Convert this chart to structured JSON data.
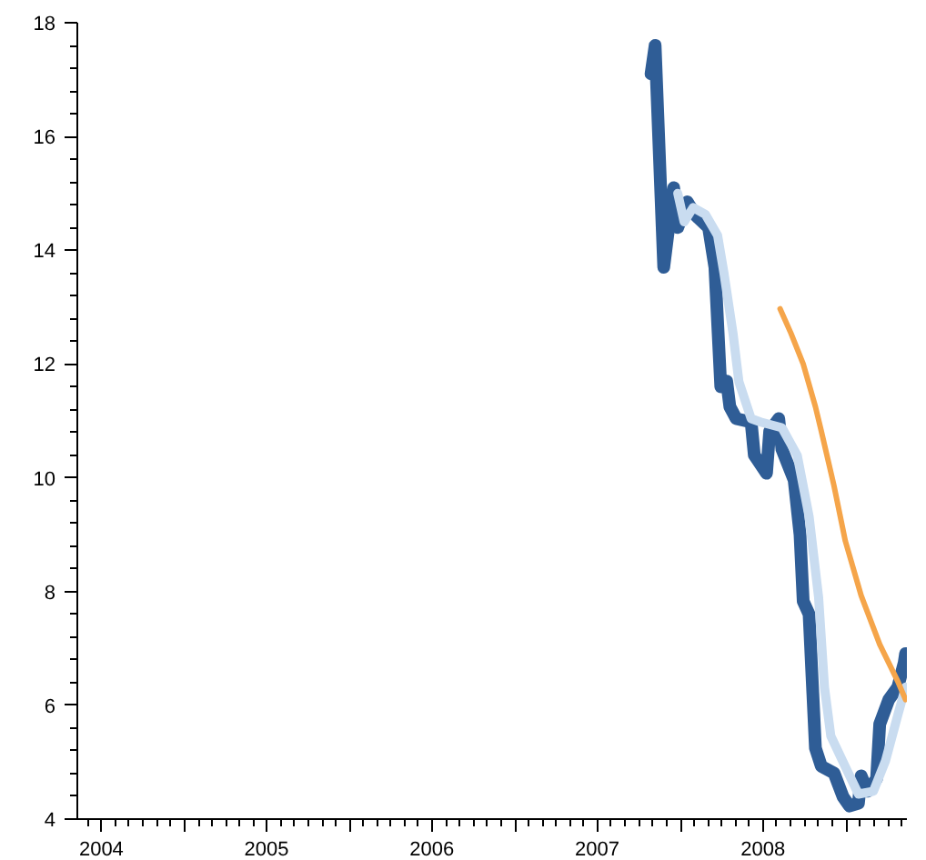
{
  "chart_data": {
    "type": "line",
    "xlim": [
      "2004-05-09",
      "2009-05-15"
    ],
    "xticks": [
      {
        "value": "2004-07-01",
        "label": "2004"
      },
      {
        "value": "2005-01-01",
        "label": null
      },
      {
        "value": "2005-07-01",
        "label": "2005"
      },
      {
        "value": "2006-01-01",
        "label": null
      },
      {
        "value": "2006-07-01",
        "label": "2006"
      },
      {
        "value": "2007-01-01",
        "label": null
      },
      {
        "value": "2007-07-01",
        "label": "2007"
      },
      {
        "value": "2008-01-01",
        "label": null
      },
      {
        "value": "2008-07-01",
        "label": "2008"
      },
      {
        "value": "2009-01-01",
        "label": null
      }
    ],
    "ylim": [
      4,
      18
    ],
    "yticks": [
      4,
      6,
      8,
      10,
      12,
      14,
      16,
      18
    ],
    "grid": false,
    "marker": "none",
    "line_style": "solid",
    "series": [
      {
        "color": "#2f5d96",
        "x": [
          "2007-10-28",
          "2007-11-06",
          "2007-11-25",
          "2007-12-17",
          "2007-12-26",
          "2008-01-16",
          "2008-02-05",
          "2008-03-03",
          "2008-03-17",
          "2008-03-30",
          "2008-04-12",
          "2008-04-19",
          "2008-05-03",
          "2008-06-05",
          "2008-06-12",
          "2008-07-09",
          "2008-07-16",
          "2008-08-05",
          "2008-08-12",
          "2008-09-08",
          "2008-09-21",
          "2008-09-28",
          "2008-10-11",
          "2008-10-25",
          "2008-11-07",
          "2008-12-05",
          "2008-12-25",
          "2009-01-08",
          "2009-01-28",
          "2009-02-03",
          "2009-02-17",
          "2009-03-09",
          "2009-03-16",
          "2009-04-05",
          "2009-04-25",
          "2009-05-09",
          "2009-05-12"
        ],
        "values": [
          17.1,
          17.6,
          13.7,
          15.1,
          14.4,
          14.85,
          14.6,
          14.4,
          13.7,
          11.6,
          11.7,
          11.25,
          11.04,
          10.98,
          10.4,
          10.08,
          10.82,
          11.04,
          10.5,
          9.96,
          9.0,
          7.83,
          7.6,
          5.25,
          4.93,
          4.81,
          4.39,
          4.23,
          4.28,
          4.76,
          4.49,
          4.71,
          5.67,
          6.1,
          6.32,
          6.75,
          6.91
        ]
      },
      {
        "color": "#c9dcf0",
        "x": [
          "2007-12-26",
          "2008-01-09",
          "2008-01-29",
          "2008-02-25",
          "2008-03-23",
          "2008-04-06",
          "2008-04-26",
          "2008-05-09",
          "2008-06-05",
          "2008-06-26",
          "2008-08-12",
          "2008-09-15",
          "2008-10-11",
          "2008-11-01",
          "2008-11-14",
          "2008-11-28",
          "2008-12-30",
          "2009-01-28",
          "2009-03-02",
          "2009-03-29",
          "2009-04-25",
          "2009-05-12"
        ],
        "values": [
          15.0,
          14.5,
          14.75,
          14.63,
          14.26,
          13.6,
          12.54,
          11.69,
          11.04,
          10.98,
          10.88,
          10.39,
          9.32,
          7.9,
          6.32,
          5.46,
          4.92,
          4.44,
          4.49,
          5.03,
          5.83,
          6.32
        ]
      },
      {
        "color": "#f5a54a",
        "x": [
          "2008-08-08",
          "2008-09-01",
          "2008-09-28",
          "2008-10-25",
          "2008-11-07",
          "2008-12-05",
          "2008-12-30",
          "2009-02-03",
          "2009-03-16",
          "2009-04-25",
          "2009-05-12"
        ],
        "values": [
          12.97,
          12.54,
          12.0,
          11.25,
          10.82,
          9.86,
          8.89,
          7.93,
          7.07,
          6.42,
          6.1
        ]
      }
    ]
  }
}
